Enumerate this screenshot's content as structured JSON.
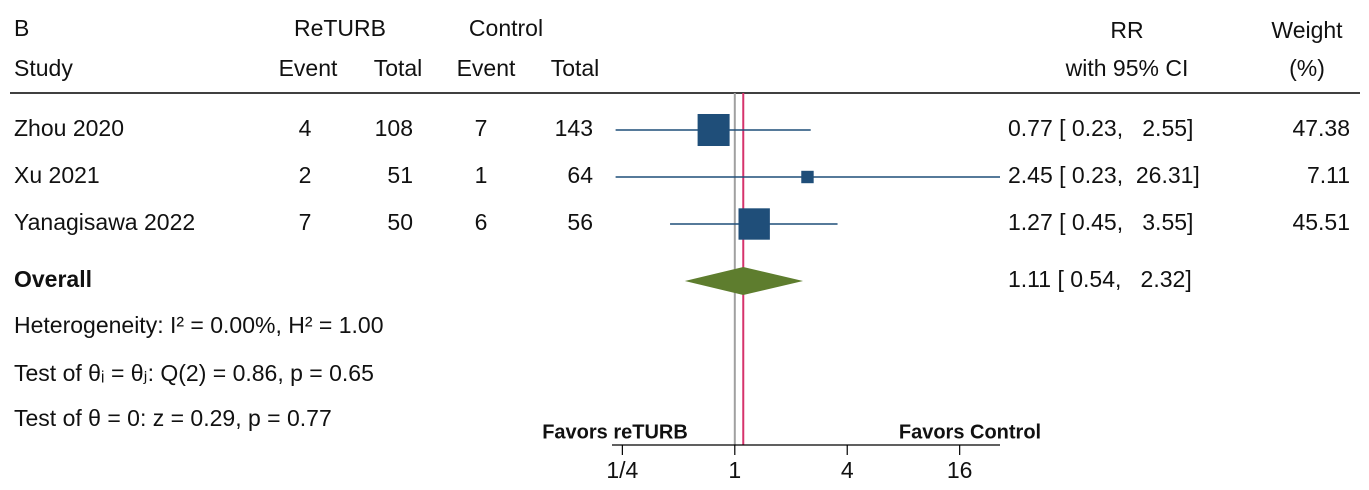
{
  "chart_data": {
    "type": "forest",
    "panel_label": "B",
    "headers": {
      "group1": "ReTURB",
      "group2": "Control",
      "study": "Study",
      "event1": "Event",
      "total1": "Total",
      "event2": "Event",
      "total2": "Total",
      "effect": "RR",
      "effect_sub": "with 95% CI",
      "weight": "Weight",
      "weight_sub": "(%)"
    },
    "studies": [
      {
        "name": "Zhou 2020",
        "event1": 4,
        "total1": 108,
        "event2": 7,
        "total2": 143,
        "rr": 0.77,
        "ci": [
          0.23,
          2.55
        ],
        "ci_label": "0.77 [ 0.23,   2.55]",
        "weight": 47.38
      },
      {
        "name": "Xu 2021",
        "event1": 2,
        "total1": 51,
        "event2": 1,
        "total2": 64,
        "rr": 2.45,
        "ci": [
          0.23,
          26.31
        ],
        "ci_label": "2.45 [ 0.23,  26.31]",
        "weight": 7.11
      },
      {
        "name": "Yanagisawa 2022",
        "event1": 7,
        "total1": 50,
        "event2": 6,
        "total2": 56,
        "rr": 1.27,
        "ci": [
          0.45,
          3.55
        ],
        "ci_label": "1.27 [ 0.45,   3.55]",
        "weight": 45.51
      }
    ],
    "overall": {
      "name": "Overall",
      "rr": 1.11,
      "ci": [
        0.54,
        2.32
      ],
      "ci_label": "1.11 [ 0.54,   2.32]"
    },
    "heterogeneity": "Heterogeneity: I² = 0.00%, H² = 1.00",
    "test_heterogeneity": "Test of θᵢ = θⱼ: Q(2) = 0.86, p = 0.65",
    "test_effect": "Test of θ = 0: z = 0.29, p = 0.77",
    "favors_left": "Favors reTURB",
    "favors_right": "Favors Control",
    "xscale": "log",
    "xlim": [
      0.22,
      26.31
    ],
    "xticks": [
      {
        "value": 0.25,
        "label": "1/4"
      },
      1,
      4,
      16
    ],
    "null_value": 1,
    "colors": {
      "study": "#1f4e79",
      "overall": "#5e7d2e",
      "null_line": "#a0a0a0",
      "overall_line": "#d6336c",
      "favors": "#1b5e20"
    }
  }
}
